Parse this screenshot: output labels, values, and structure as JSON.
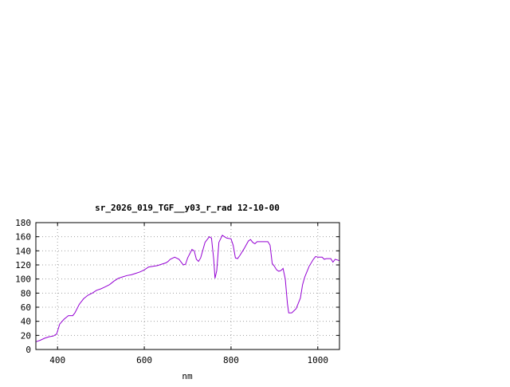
{
  "chart_data": {
    "type": "line",
    "title": "sr_2026_019_TGF__y03_r_rad 12-10-00",
    "xlabel": "nm",
    "ylabel": "",
    "xlim": [
      350,
      1050
    ],
    "ylim": [
      0,
      180
    ],
    "xticks": [
      400,
      600,
      800,
      1000
    ],
    "yticks": [
      0,
      20,
      40,
      60,
      80,
      100,
      120,
      140,
      160,
      180
    ],
    "grid": true,
    "line_color": "#9400d3",
    "series": [
      {
        "points": [
          [
            350,
            11
          ],
          [
            360,
            13
          ],
          [
            370,
            16
          ],
          [
            380,
            18
          ],
          [
            390,
            19
          ],
          [
            398,
            22
          ],
          [
            405,
            36
          ],
          [
            415,
            43
          ],
          [
            425,
            48
          ],
          [
            435,
            48
          ],
          [
            440,
            52
          ],
          [
            450,
            64
          ],
          [
            460,
            72
          ],
          [
            470,
            77
          ],
          [
            480,
            80
          ],
          [
            490,
            84
          ],
          [
            500,
            86
          ],
          [
            510,
            89
          ],
          [
            520,
            92
          ],
          [
            530,
            97
          ],
          [
            540,
            101
          ],
          [
            550,
            103
          ],
          [
            560,
            105
          ],
          [
            570,
            106
          ],
          [
            580,
            108
          ],
          [
            590,
            110
          ],
          [
            600,
            113
          ],
          [
            610,
            117
          ],
          [
            620,
            118
          ],
          [
            630,
            119
          ],
          [
            640,
            121
          ],
          [
            650,
            123
          ],
          [
            655,
            125
          ],
          [
            660,
            128
          ],
          [
            670,
            131
          ],
          [
            680,
            128
          ],
          [
            690,
            120
          ],
          [
            695,
            121
          ],
          [
            700,
            130
          ],
          [
            710,
            142
          ],
          [
            715,
            140
          ],
          [
            720,
            128
          ],
          [
            725,
            125
          ],
          [
            730,
            130
          ],
          [
            740,
            152
          ],
          [
            750,
            160
          ],
          [
            755,
            158
          ],
          [
            760,
            128
          ],
          [
            763,
            101
          ],
          [
            767,
            112
          ],
          [
            772,
            152
          ],
          [
            780,
            162
          ],
          [
            790,
            158
          ],
          [
            800,
            157
          ],
          [
            805,
            148
          ],
          [
            810,
            130
          ],
          [
            815,
            129
          ],
          [
            820,
            133
          ],
          [
            830,
            143
          ],
          [
            840,
            154
          ],
          [
            845,
            156
          ],
          [
            850,
            152
          ],
          [
            855,
            150
          ],
          [
            860,
            153
          ],
          [
            870,
            153
          ],
          [
            880,
            153
          ],
          [
            885,
            153
          ],
          [
            890,
            148
          ],
          [
            895,
            122
          ],
          [
            900,
            118
          ],
          [
            905,
            113
          ],
          [
            910,
            111
          ],
          [
            915,
            112
          ],
          [
            920,
            115
          ],
          [
            925,
            100
          ],
          [
            930,
            65
          ],
          [
            933,
            52
          ],
          [
            940,
            52
          ],
          [
            950,
            58
          ],
          [
            960,
            73
          ],
          [
            965,
            92
          ],
          [
            970,
            103
          ],
          [
            980,
            118
          ],
          [
            990,
            128
          ],
          [
            995,
            132
          ],
          [
            1000,
            131
          ],
          [
            1010,
            131
          ],
          [
            1015,
            128
          ],
          [
            1020,
            129
          ],
          [
            1030,
            129
          ],
          [
            1035,
            124
          ],
          [
            1040,
            128
          ],
          [
            1050,
            126
          ]
        ]
      }
    ]
  }
}
